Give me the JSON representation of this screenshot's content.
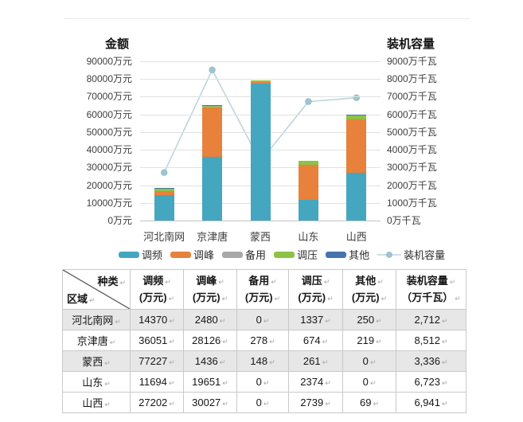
{
  "chart": {
    "left_axis_title": "金额",
    "right_axis_title": "装机容量",
    "left_tick_labels": [
      "0万元",
      "10000万元",
      "20000万元",
      "30000万元",
      "40000万元",
      "50000万元",
      "60000万元",
      "70000万元",
      "80000万元",
      "90000万元"
    ],
    "right_tick_labels": [
      "0万千瓦",
      "1000万千瓦",
      "2000万千瓦",
      "3000万千瓦",
      "4000万千瓦",
      "5000万千瓦",
      "6000万千瓦",
      "7000万千瓦",
      "8000万千瓦",
      "9000万千瓦"
    ]
  },
  "chart_data": {
    "type": "bar",
    "stacked": true,
    "grid": true,
    "legend_position": "bottom",
    "categories": [
      "河北南网",
      "京津唐",
      "蒙西",
      "山东",
      "山西"
    ],
    "series": [
      {
        "name": "调频",
        "color": "#45a6c0",
        "values": [
          14370,
          36051,
          77227,
          11694,
          27202
        ]
      },
      {
        "name": "调峰",
        "color": "#e8813b",
        "values": [
          2480,
          28126,
          1436,
          19651,
          30027
        ]
      },
      {
        "name": "备用",
        "color": "#a8a8a8",
        "values": [
          0,
          278,
          148,
          0,
          0
        ]
      },
      {
        "name": "调压",
        "color": "#8cc345",
        "values": [
          1337,
          674,
          261,
          2374,
          2739
        ]
      },
      {
        "name": "其他",
        "color": "#4575ad",
        "values": [
          250,
          219,
          0,
          0,
          69
        ]
      }
    ],
    "line_series": {
      "name": "装机容量",
      "color": "#bdd5dc",
      "marker_color": "#9fc5d2",
      "values": [
        2712,
        8512,
        3336,
        6723,
        6941
      ]
    },
    "left_axis": {
      "title": "金额",
      "unit": "万元",
      "min": 0,
      "max": 90000,
      "step": 10000
    },
    "right_axis": {
      "title": "装机容量",
      "unit": "万千瓦",
      "min": 0,
      "max": 9000,
      "step": 1000
    }
  },
  "table": {
    "corner_top": "种类",
    "corner_bottom": "区域",
    "cell_mark": "↵",
    "columns": [
      {
        "name": "调频",
        "unit": "(万元)"
      },
      {
        "name": "调峰",
        "unit": "(万元)"
      },
      {
        "name": "备用",
        "unit": "(万元)"
      },
      {
        "name": "调压",
        "unit": "(万元)"
      },
      {
        "name": "其他",
        "unit": "(万元)"
      },
      {
        "name": "装机容量",
        "unit": "（万千瓦）"
      }
    ],
    "rows": [
      {
        "region": "河北南网",
        "values": [
          "14370",
          "2480",
          "0",
          "1337",
          "250",
          "2,712"
        ]
      },
      {
        "region": "京津唐",
        "values": [
          "36051",
          "28126",
          "278",
          "674",
          "219",
          "8,512"
        ]
      },
      {
        "region": "蒙西",
        "values": [
          "77227",
          "1436",
          "148",
          "261",
          "0",
          "3,336"
        ]
      },
      {
        "region": "山东",
        "values": [
          "11694",
          "19651",
          "0",
          "2374",
          "0",
          "6,723"
        ]
      },
      {
        "region": "山西",
        "values": [
          "27202",
          "30027",
          "0",
          "2739",
          "69",
          "6,941"
        ]
      }
    ]
  }
}
